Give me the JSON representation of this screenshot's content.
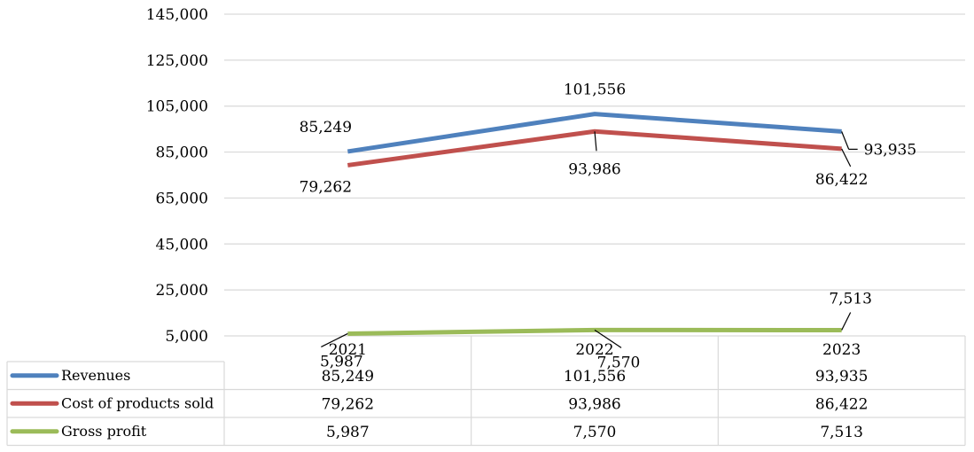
{
  "chart_data": {
    "type": "line",
    "categories": [
      "2021",
      "2022",
      "2023"
    ],
    "series": [
      {
        "name": "Revenues",
        "values": [
          85249,
          101556,
          93935
        ],
        "labels": [
          "85,249",
          "101,556",
          "93,935"
        ],
        "color": "#4f81bd"
      },
      {
        "name": "Cost of products sold",
        "values": [
          79262,
          93986,
          86422
        ],
        "labels": [
          "79,262",
          "93,986",
          "86,422"
        ],
        "color": "#c0504d"
      },
      {
        "name": "Gross profit",
        "values": [
          5987,
          7570,
          7513
        ],
        "labels": [
          "5,987",
          "7,570",
          "7,513"
        ],
        "color": "#9bbb59"
      }
    ],
    "y_ticks": [
      5000,
      25000,
      45000,
      65000,
      85000,
      105000,
      125000,
      145000
    ],
    "y_tick_labels": [
      "5,000",
      "25,000",
      "45,000",
      "65,000",
      "85,000",
      "105,000",
      "125,000",
      "145,000"
    ],
    "ylim": [
      5000,
      145000
    ],
    "grid": true,
    "legend": "data-table-below",
    "title": "",
    "xlabel": "",
    "ylabel": ""
  }
}
